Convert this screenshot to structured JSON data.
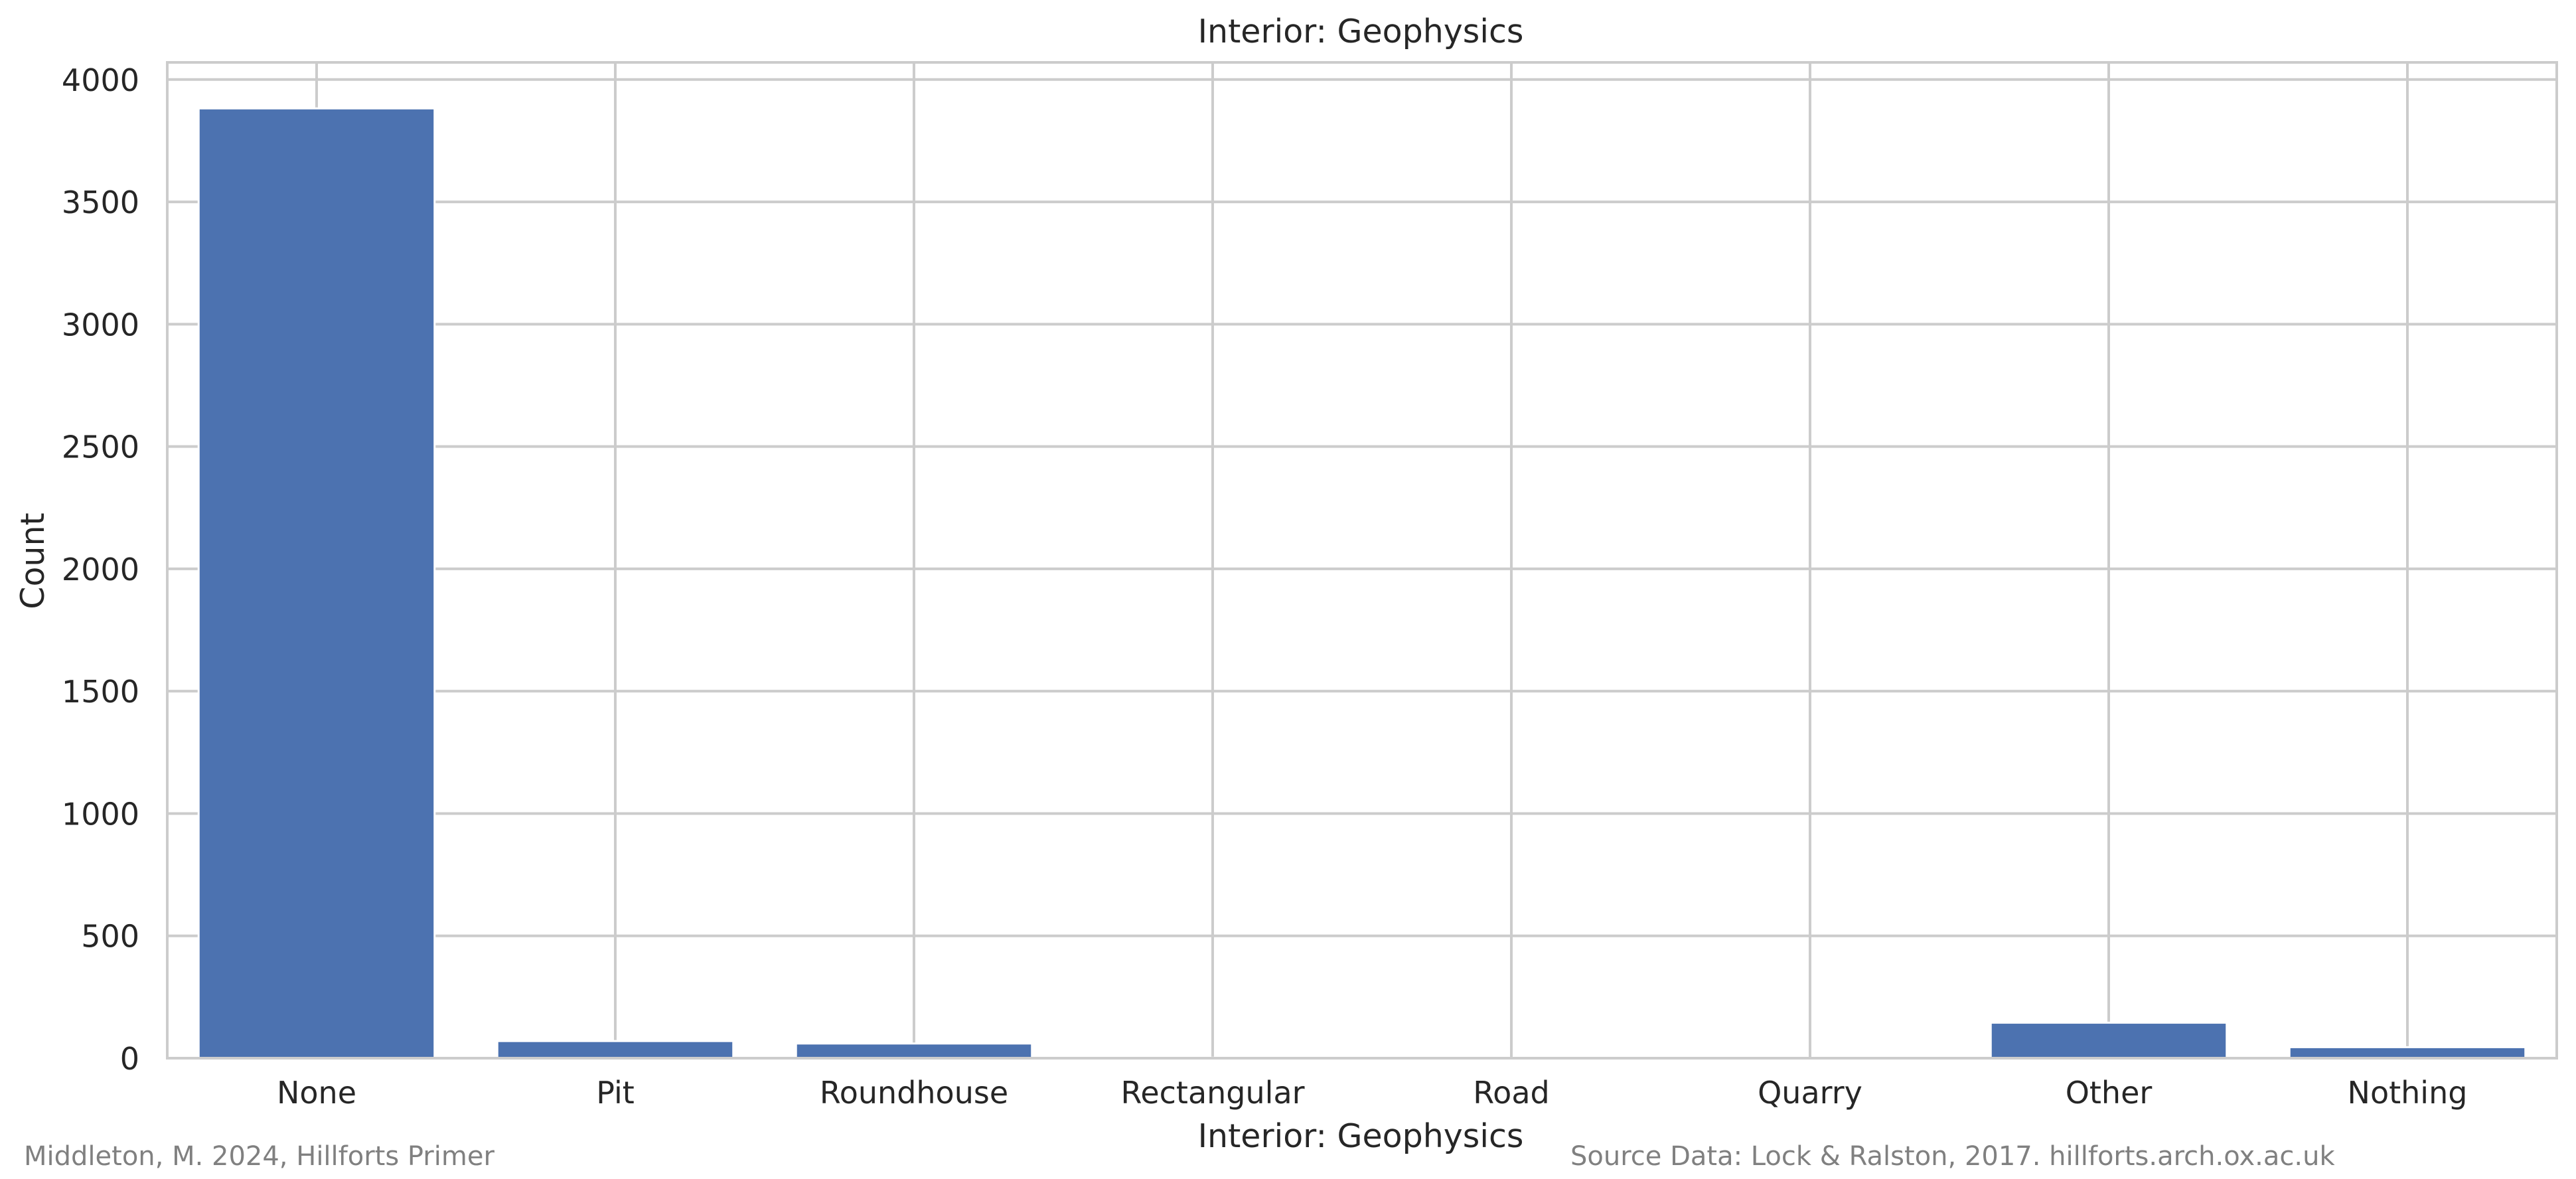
{
  "chart_data": {
    "type": "bar",
    "title": "Interior: Geophysics",
    "xlabel": "Interior: Geophysics",
    "ylabel": "Count",
    "categories": [
      "None",
      "Pit",
      "Roundhouse",
      "Rectangular",
      "Road",
      "Quarry",
      "Other",
      "Nothing"
    ],
    "values": [
      3882,
      70,
      60,
      2,
      1,
      0,
      145,
      45
    ],
    "ylim": [
      0,
      4070
    ],
    "yticks": [
      0,
      500,
      1000,
      1500,
      2000,
      2500,
      3000,
      3500,
      4000
    ],
    "grid": true,
    "bar_color": "#4c72b0",
    "grid_color": "#cccccc"
  },
  "footer": {
    "credit_left": "Middleton, M. 2024, Hillforts Primer",
    "credit_right": "Source Data: Lock & Ralston, 2017. hillforts.arch.ox.ac.uk"
  }
}
